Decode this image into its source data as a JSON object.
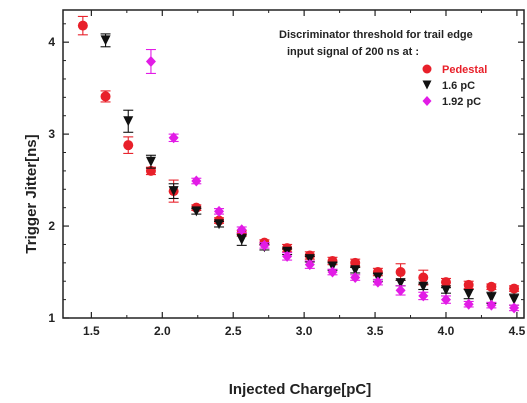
{
  "chart_data": {
    "type": "scatter",
    "xlabel": "Injected Charge[pC]",
    "ylabel": "Trigger Jitter[ns]",
    "xlim": [
      1.3,
      4.55
    ],
    "ylim": [
      1.0,
      4.35
    ],
    "xticks": [
      "1.5",
      "2.0",
      "2.5",
      "3.0",
      "3.5",
      "4.0",
      "4.5"
    ],
    "yticks": [
      "1",
      "2",
      "3",
      "4"
    ],
    "annotation": [
      "Discriminator threshold for trail edge",
      "input signal of 200 ns at :"
    ],
    "legend_position": "top-right",
    "series": [
      {
        "name": "Pedestal",
        "color": "#e8202a",
        "marker": "circle",
        "points": [
          {
            "x": 1.44,
            "y": 4.18,
            "err": 0.1
          },
          {
            "x": 1.6,
            "y": 3.41,
            "err": 0.06
          },
          {
            "x": 1.76,
            "y": 2.88,
            "err": 0.09
          },
          {
            "x": 1.92,
            "y": 2.6,
            "err": 0.04
          },
          {
            "x": 2.08,
            "y": 2.38,
            "err": 0.12
          },
          {
            "x": 2.24,
            "y": 2.2,
            "err": 0.03
          },
          {
            "x": 2.4,
            "y": 2.06,
            "err": 0.03
          },
          {
            "x": 2.56,
            "y": 1.92,
            "err": 0.03
          },
          {
            "x": 2.72,
            "y": 1.82,
            "err": 0.03
          },
          {
            "x": 2.88,
            "y": 1.76,
            "err": 0.04
          },
          {
            "x": 3.04,
            "y": 1.68,
            "err": 0.04
          },
          {
            "x": 3.2,
            "y": 1.62,
            "err": 0.04
          },
          {
            "x": 3.36,
            "y": 1.6,
            "err": 0.04
          },
          {
            "x": 3.52,
            "y": 1.5,
            "err": 0.04
          },
          {
            "x": 3.68,
            "y": 1.5,
            "err": 0.09
          },
          {
            "x": 3.84,
            "y": 1.44,
            "err": 0.08
          },
          {
            "x": 4.0,
            "y": 1.39,
            "err": 0.04
          },
          {
            "x": 4.16,
            "y": 1.36,
            "err": 0.04
          },
          {
            "x": 4.32,
            "y": 1.34,
            "err": 0.03
          },
          {
            "x": 4.48,
            "y": 1.32,
            "err": 0.03
          }
        ]
      },
      {
        "name": "1.6 pC",
        "color": "#111111",
        "marker": "triangle-down",
        "points": [
          {
            "x": 1.6,
            "y": 4.02,
            "err": 0.07
          },
          {
            "x": 1.76,
            "y": 3.14,
            "err": 0.12
          },
          {
            "x": 1.92,
            "y": 2.7,
            "err": 0.07
          },
          {
            "x": 2.08,
            "y": 2.38,
            "err": 0.08
          },
          {
            "x": 2.24,
            "y": 2.16,
            "err": 0.03
          },
          {
            "x": 2.4,
            "y": 2.02,
            "err": 0.03
          },
          {
            "x": 2.56,
            "y": 1.85,
            "err": 0.06
          },
          {
            "x": 2.72,
            "y": 1.77,
            "err": 0.03
          },
          {
            "x": 2.88,
            "y": 1.72,
            "err": 0.03
          },
          {
            "x": 3.04,
            "y": 1.64,
            "err": 0.03
          },
          {
            "x": 3.2,
            "y": 1.56,
            "err": 0.04
          },
          {
            "x": 3.36,
            "y": 1.52,
            "err": 0.03
          },
          {
            "x": 3.52,
            "y": 1.44,
            "err": 0.04
          },
          {
            "x": 3.68,
            "y": 1.38,
            "err": 0.03
          },
          {
            "x": 3.84,
            "y": 1.34,
            "err": 0.03
          },
          {
            "x": 4.0,
            "y": 1.3,
            "err": 0.03
          },
          {
            "x": 4.16,
            "y": 1.26,
            "err": 0.05
          },
          {
            "x": 4.32,
            "y": 1.22,
            "err": 0.06
          },
          {
            "x": 4.48,
            "y": 1.2,
            "err": 0.06
          }
        ]
      },
      {
        "name": "1.92 pC",
        "color": "#e21ce6",
        "marker": "diamond",
        "points": [
          {
            "x": 1.92,
            "y": 3.79,
            "err": 0.13
          },
          {
            "x": 2.08,
            "y": 2.96,
            "err": 0.04
          },
          {
            "x": 2.24,
            "y": 2.49,
            "err": 0.03
          },
          {
            "x": 2.4,
            "y": 2.16,
            "err": 0.03
          },
          {
            "x": 2.56,
            "y": 1.96,
            "err": 0.03
          },
          {
            "x": 2.72,
            "y": 1.79,
            "err": 0.03
          },
          {
            "x": 2.88,
            "y": 1.67,
            "err": 0.04
          },
          {
            "x": 3.04,
            "y": 1.58,
            "err": 0.04
          },
          {
            "x": 3.2,
            "y": 1.5,
            "err": 0.03
          },
          {
            "x": 3.36,
            "y": 1.44,
            "err": 0.03
          },
          {
            "x": 3.52,
            "y": 1.39,
            "err": 0.03
          },
          {
            "x": 3.68,
            "y": 1.3,
            "err": 0.05
          },
          {
            "x": 3.84,
            "y": 1.24,
            "err": 0.04
          },
          {
            "x": 4.0,
            "y": 1.2,
            "err": 0.04
          },
          {
            "x": 4.16,
            "y": 1.15,
            "err": 0.03
          },
          {
            "x": 4.32,
            "y": 1.14,
            "err": 0.03
          },
          {
            "x": 4.48,
            "y": 1.11,
            "err": 0.03
          }
        ]
      }
    ]
  }
}
